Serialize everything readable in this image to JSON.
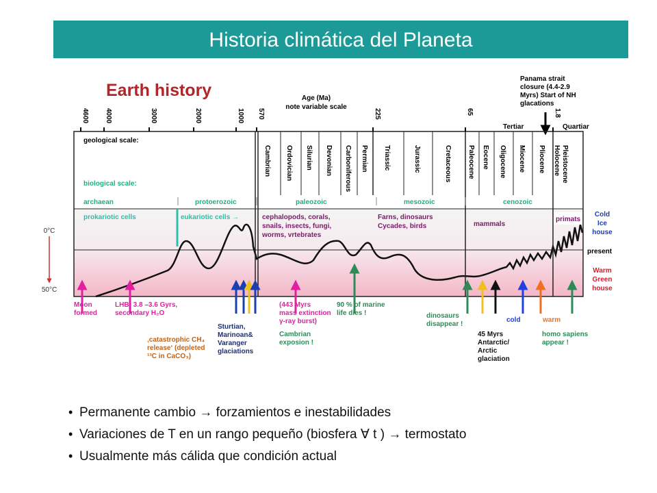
{
  "title": "Historia climática del Planeta",
  "figure": {
    "heading": "Earth history",
    "age_label": "Age (Ma)",
    "age_note": "note variable scale",
    "age_ticks": [
      "4600",
      "4000",
      "3000",
      "2000",
      "1000",
      "570",
      "225",
      "65",
      "1.8"
    ],
    "panama_note": [
      "Panama strait",
      "closure (4.4-2.9",
      "Myrs) Start of NH",
      "glacations"
    ],
    "tertiar": "Tertiar",
    "quartiar": "Quartiar",
    "geological_label": "geological scale:",
    "periods": [
      "Cambrian",
      "Ordovician",
      "Silurian",
      "Devonian",
      "Carboniferous",
      "Permian",
      "Triassic",
      "Jurassic",
      "Cretaceous",
      "Paleocene",
      "Eocene",
      "Oligocene",
      "Miocene",
      "Pliocene",
      "Holocene",
      "Pleistocene"
    ],
    "biological_label": "biological scale:",
    "eras": [
      "archaean",
      "protoerozoic",
      "paleozoic",
      "mesozoic",
      "cenozoic"
    ],
    "prokaryotes": "prokariotic cells",
    "eukaryotes": "eukariotic cells →",
    "paleozoic_life": [
      "cephalopods, corals,",
      "snails, insects, fungi,",
      "worms, vrtebrates"
    ],
    "mesozoic_life": [
      "Farns, dinosaurs",
      "Cycades,  birds"
    ],
    "mammals": "mammals",
    "primates": "primats",
    "cold": [
      "Cold",
      "Ice",
      "house"
    ],
    "present": "present",
    "warm": [
      "Warm",
      "Green",
      "house"
    ],
    "temp_low": "0°C",
    "temp_high": "50°C",
    "events": [
      {
        "lines": [
          "Moon",
          "formed"
        ]
      },
      {
        "lines": [
          "LHB: 3.8 –3.6 Gyrs,",
          "secondary H₂O"
        ]
      },
      {
        "lines": [
          "‚catastrophic CH₄",
          "release‘ (depleted",
          "¹³C in CaCO₃)"
        ]
      },
      {
        "lines": [
          "Sturtian,",
          "Marinoan&",
          "Varanger",
          "glaciations"
        ]
      },
      {
        "lines": [
          "(443 Myrs",
          "mass extinction",
          "γ-ray burst)"
        ]
      },
      {
        "lines": [
          "Cambrian",
          "exposion !"
        ]
      },
      {
        "lines": [
          "90 % of marine",
          "life dies !"
        ]
      },
      {
        "lines": [
          "dinosaurs",
          "disappear !"
        ]
      },
      {
        "lines": [
          "45 Myrs",
          "Antarctic/",
          "Arctic",
          "glaciation"
        ]
      },
      {
        "lines": [
          "cold"
        ]
      },
      {
        "lines": [
          "warm"
        ]
      },
      {
        "lines": [
          "homo sapiens",
          "appear !"
        ]
      }
    ]
  },
  "bullets": [
    "Permanente cambio → forzamientos e inestabilidades",
    "Variaciones de T en un rango pequeño (biosfera ∀ t ) → termostato",
    "Usualmente más cálida que condición actual"
  ]
}
